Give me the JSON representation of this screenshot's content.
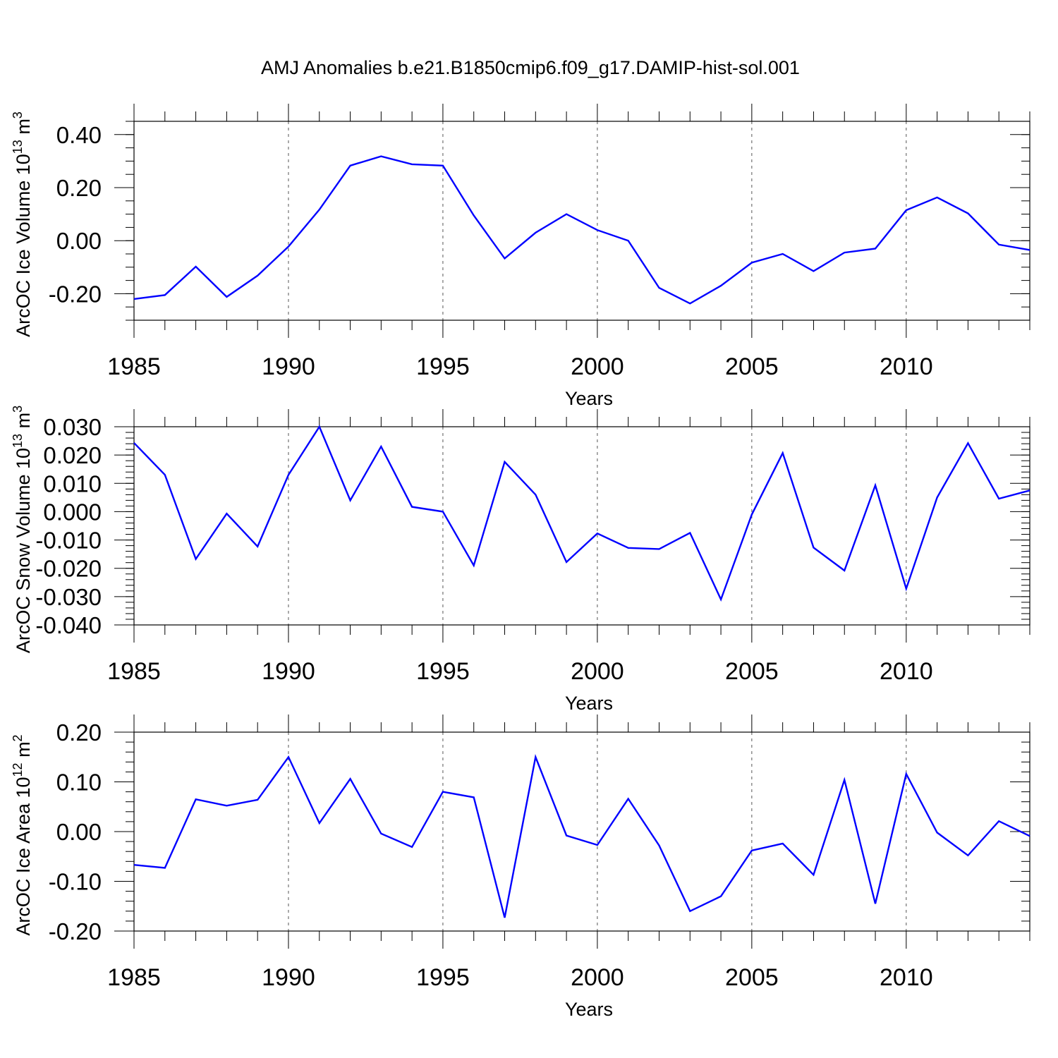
{
  "title": "AMJ Anomalies b.e21.B1850cmip6.f09_g17.DAMIP-hist-sol.001",
  "colors": {
    "line": "#0000ff",
    "axis": "#000000",
    "grid": "#555555"
  },
  "chart_data": [
    {
      "type": "line",
      "ylabel_main": "ArcOC Ice Volume 10",
      "ylabel_exp": "13",
      "ylabel_unit_base": "m",
      "ylabel_unit_exp": "3",
      "xlabel": "Years",
      "xlim": [
        1985,
        2014
      ],
      "ylim": [
        -0.3,
        0.45
      ],
      "yticks": [
        -0.2,
        0.0,
        0.2,
        0.4
      ],
      "ytick_labels": [
        "-0.20",
        "0.00",
        "0.20",
        "0.40"
      ],
      "yminor_step": 0.05,
      "xticks": [
        1985,
        1990,
        1995,
        2000,
        2005,
        2010
      ],
      "xtick_labels": [
        "1985",
        "1990",
        "1995",
        "2000",
        "2005",
        "2010"
      ],
      "vgrid": [
        1990,
        1995,
        2000,
        2005,
        2010
      ],
      "x": [
        1985,
        1986,
        1987,
        1988,
        1989,
        1990,
        1991,
        1992,
        1993,
        1994,
        1995,
        1996,
        1997,
        1998,
        1999,
        2000,
        2001,
        2002,
        2003,
        2004,
        2005,
        2006,
        2007,
        2008,
        2009,
        2010,
        2011,
        2012,
        2013,
        2014
      ],
      "values": [
        -0.22,
        -0.205,
        -0.098,
        -0.212,
        -0.132,
        -0.022,
        0.117,
        0.283,
        0.318,
        0.288,
        0.283,
        0.095,
        -0.067,
        0.03,
        0.1,
        0.04,
        0.0,
        -0.178,
        -0.237,
        -0.17,
        -0.083,
        -0.05,
        -0.115,
        -0.045,
        -0.03,
        0.115,
        0.163,
        0.103,
        -0.015,
        -0.035
      ]
    },
    {
      "type": "line",
      "ylabel_main": "ArcOC Snow Volume 10",
      "ylabel_exp": "13",
      "ylabel_unit_base": "m",
      "ylabel_unit_exp": "3",
      "xlabel": "Years",
      "xlim": [
        1985,
        2014
      ],
      "ylim": [
        -0.04,
        0.03
      ],
      "yticks": [
        -0.04,
        -0.03,
        -0.02,
        -0.01,
        0.0,
        0.01,
        0.02,
        0.03
      ],
      "ytick_labels": [
        "-0.040",
        "-0.030",
        "-0.020",
        "-0.010",
        "0.000",
        "0.010",
        "0.020",
        "0.030"
      ],
      "yminor_step": 0.002,
      "xticks": [
        1985,
        1990,
        1995,
        2000,
        2005,
        2010
      ],
      "xtick_labels": [
        "1985",
        "1990",
        "1995",
        "2000",
        "2005",
        "2010"
      ],
      "vgrid": [
        1990,
        1995,
        2000,
        2005,
        2010
      ],
      "x": [
        1985,
        1986,
        1987,
        1988,
        1989,
        1990,
        1991,
        1992,
        1993,
        1994,
        1995,
        1996,
        1997,
        1998,
        1999,
        2000,
        2001,
        2002,
        2003,
        2004,
        2005,
        2006,
        2007,
        2008,
        2009,
        2010,
        2011,
        2012,
        2013,
        2014
      ],
      "values": [
        0.0243,
        0.013,
        -0.0167,
        -0.0007,
        -0.0123,
        0.013,
        0.03,
        0.004,
        0.023,
        0.0017,
        0.0,
        -0.019,
        0.0176,
        0.006,
        -0.0178,
        -0.0077,
        -0.0128,
        -0.0132,
        -0.0075,
        -0.031,
        -0.001,
        0.0207,
        -0.0127,
        -0.0208,
        0.0093,
        -0.0272,
        0.005,
        0.0242,
        0.0046,
        0.0075
      ]
    },
    {
      "type": "line",
      "ylabel_main": "ArcOC Ice Area 10",
      "ylabel_exp": "12",
      "ylabel_unit_base": "m",
      "ylabel_unit_exp": "2",
      "xlabel": "Years",
      "xlim": [
        1985,
        2014
      ],
      "ylim": [
        -0.2,
        0.2
      ],
      "yticks": [
        -0.2,
        -0.1,
        0.0,
        0.1,
        0.2
      ],
      "ytick_labels": [
        "-0.20",
        "-0.10",
        "0.00",
        "0.10",
        "0.20"
      ],
      "yminor_step": 0.02,
      "xticks": [
        1985,
        1990,
        1995,
        2000,
        2005,
        2010
      ],
      "xtick_labels": [
        "1985",
        "1990",
        "1995",
        "2000",
        "2005",
        "2010"
      ],
      "vgrid": [
        1990,
        1995,
        2000,
        2005,
        2010
      ],
      "x": [
        1985,
        1986,
        1987,
        1988,
        1989,
        1990,
        1991,
        1992,
        1993,
        1994,
        1995,
        1996,
        1997,
        1998,
        1999,
        2000,
        2001,
        2002,
        2003,
        2004,
        2005,
        2006,
        2007,
        2008,
        2009,
        2010,
        2011,
        2012,
        2013,
        2014
      ],
      "values": [
        -0.067,
        -0.073,
        0.065,
        0.052,
        0.064,
        0.15,
        0.017,
        0.106,
        -0.004,
        -0.031,
        0.08,
        0.069,
        -0.173,
        0.15,
        -0.008,
        -0.027,
        0.066,
        -0.028,
        -0.16,
        -0.13,
        -0.038,
        -0.024,
        -0.087,
        0.104,
        -0.145,
        0.116,
        -0.002,
        -0.048,
        0.021,
        -0.009
      ]
    }
  ]
}
